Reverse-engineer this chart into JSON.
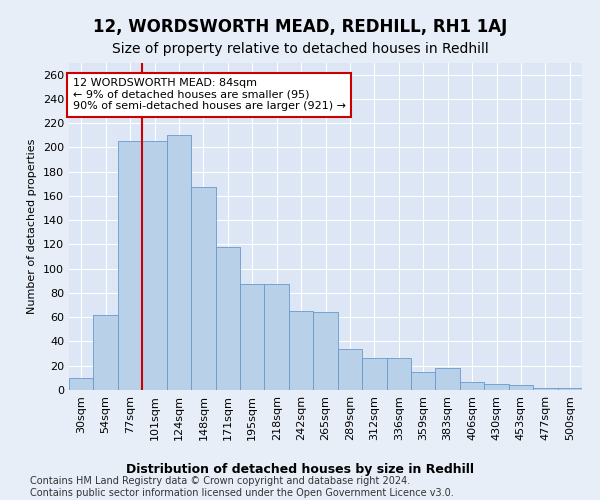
{
  "title": "12, WORDSWORTH MEAD, REDHILL, RH1 1AJ",
  "subtitle": "Size of property relative to detached houses in Redhill",
  "xlabel": "Distribution of detached houses by size in Redhill",
  "ylabel": "Number of detached properties",
  "bar_labels": [
    "30sqm",
    "54sqm",
    "77sqm",
    "101sqm",
    "124sqm",
    "148sqm",
    "171sqm",
    "195sqm",
    "218sqm",
    "242sqm",
    "265sqm",
    "289sqm",
    "312sqm",
    "336sqm",
    "359sqm",
    "383sqm",
    "406sqm",
    "430sqm",
    "453sqm",
    "477sqm",
    "500sqm"
  ],
  "bar_values": [
    10,
    62,
    205,
    205,
    210,
    167,
    118,
    87,
    87,
    65,
    64,
    34,
    26,
    26,
    15,
    18,
    7,
    5,
    4,
    2,
    2
  ],
  "bar_color": "#b8d0e8",
  "bar_edge_color": "#6699cc",
  "vline_x": 3.0,
  "vline_color": "#cc0000",
  "annotation_text": "12 WORDSWORTH MEAD: 84sqm\n← 9% of detached houses are smaller (95)\n90% of semi-detached houses are larger (921) →",
  "annotation_box_color": "#ffffff",
  "annotation_box_edge": "#cc0000",
  "ylim": [
    0,
    270
  ],
  "yticks": [
    0,
    20,
    40,
    60,
    80,
    100,
    120,
    140,
    160,
    180,
    200,
    220,
    240,
    260
  ],
  "footer": "Contains HM Land Registry data © Crown copyright and database right 2024.\nContains public sector information licensed under the Open Government Licence v3.0.",
  "bg_color": "#e8eef8",
  "plot_bg_color": "#dde6f4",
  "grid_color": "#ffffff",
  "title_fontsize": 12,
  "subtitle_fontsize": 10,
  "xlabel_fontsize": 9,
  "ylabel_fontsize": 8,
  "tick_fontsize": 8,
  "footer_fontsize": 7,
  "annot_fontsize": 8
}
